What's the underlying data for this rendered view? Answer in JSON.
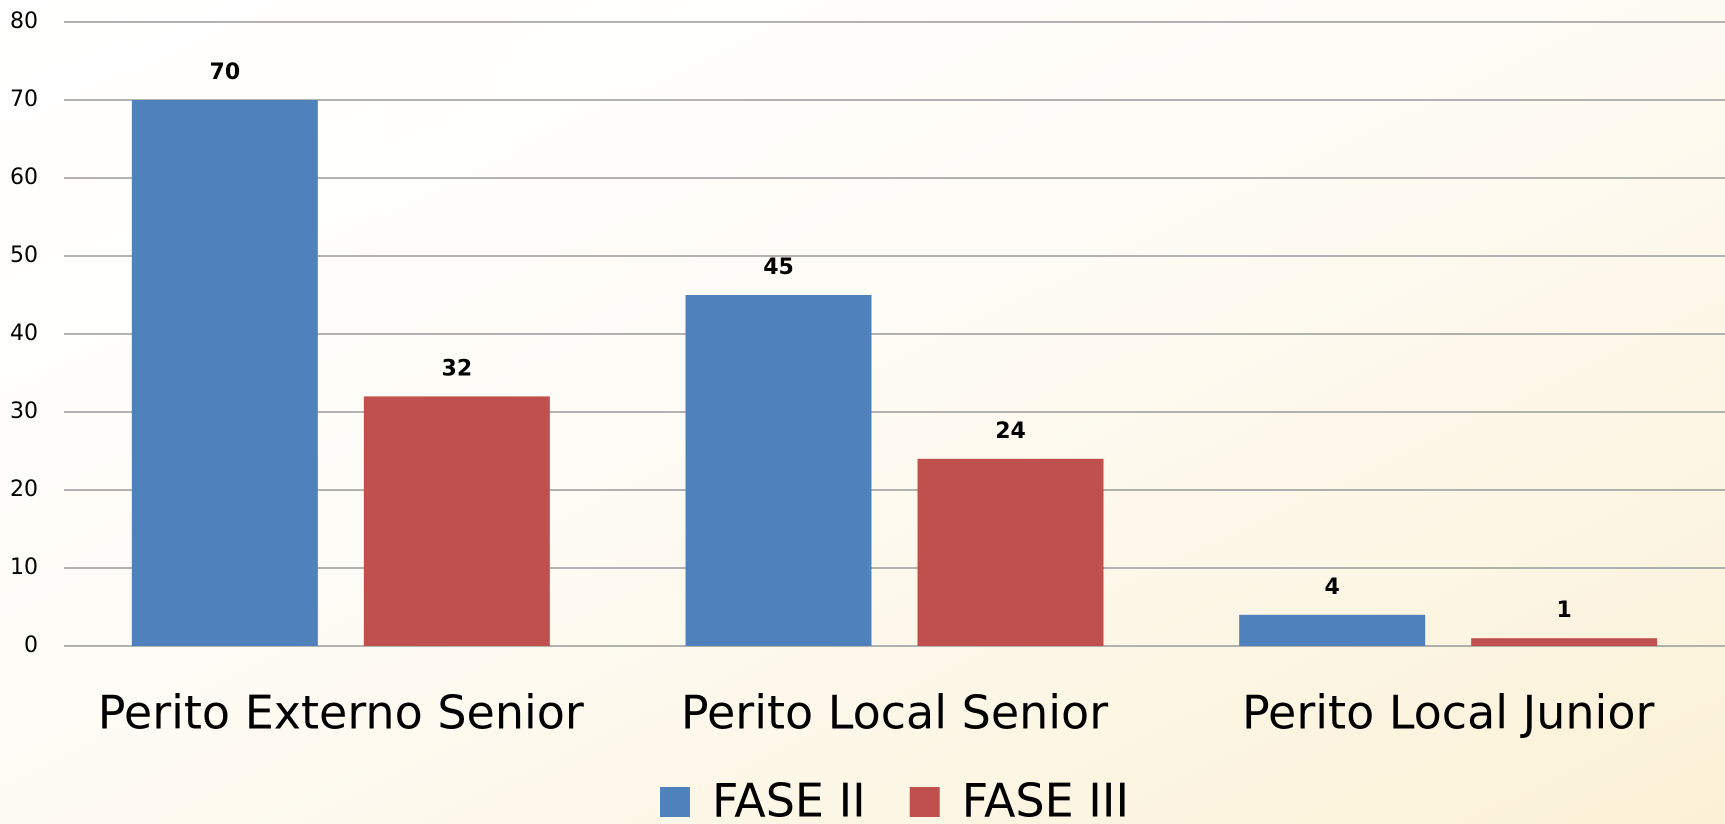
{
  "chart_data": {
    "type": "bar",
    "categories": [
      "Perito Externo Senior",
      "Perito Local Senior",
      "Perito Local Junior"
    ],
    "series": [
      {
        "name": "FASE II",
        "color": "#4f81bd",
        "values": [
          70,
          45,
          4
        ]
      },
      {
        "name": "FASE III",
        "color": "#c0504d",
        "values": [
          32,
          24,
          1
        ]
      }
    ],
    "ylim": [
      0,
      80
    ],
    "yticks": [
      0,
      10,
      20,
      30,
      40,
      50,
      60,
      70,
      80
    ],
    "grid": true,
    "legend": "bottom"
  }
}
